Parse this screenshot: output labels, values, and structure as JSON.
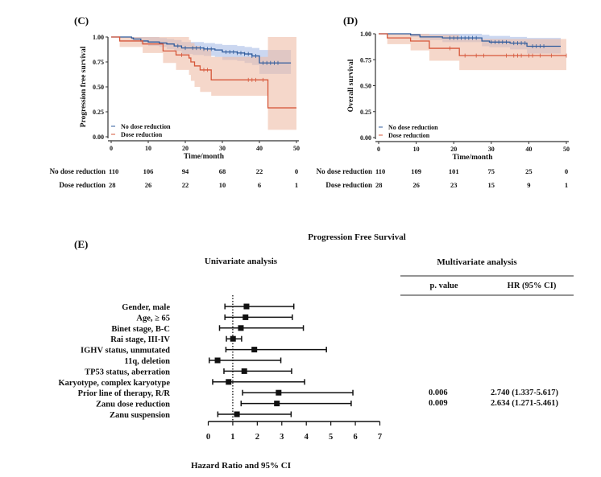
{
  "colors": {
    "no_reduction": "#2f5b9c",
    "reduction": "#d6573a",
    "no_reduction_band": "#a9bde6",
    "reduction_band": "#efbda6"
  },
  "chart_data": [
    {
      "panel": "(C)",
      "type": "line",
      "step": true,
      "xlabel": "Time/month",
      "ylabel": "Progression  free survival",
      "xlim": [
        0,
        50
      ],
      "ylim": [
        0,
        1
      ],
      "xticks": [
        "0",
        "10",
        "20",
        "30",
        "40",
        "50"
      ],
      "yticks": [
        "0.00",
        "0.25",
        "0.50",
        "0.75",
        "1.00"
      ],
      "legend": {
        "placement": "bottom-left",
        "entries": [
          "No dose reduction",
          "Dose reduction"
        ]
      },
      "series": [
        {
          "name": "No dose reduction",
          "color_key": "no_reduction",
          "x": [
            0,
            5.5,
            6,
            8,
            10,
            13,
            15,
            17,
            19,
            22,
            25,
            28,
            30,
            34,
            36,
            38,
            40,
            48.5
          ],
          "y": [
            1,
            0.99,
            0.98,
            0.96,
            0.95,
            0.94,
            0.93,
            0.91,
            0.89,
            0.89,
            0.88,
            0.87,
            0.85,
            0.84,
            0.83,
            0.81,
            0.74,
            0.74
          ],
          "ci_upper": [
            1,
            1,
            1,
            1,
            1,
            0.99,
            0.98,
            0.97,
            0.95,
            0.95,
            0.94,
            0.93,
            0.92,
            0.91,
            0.9,
            0.89,
            0.87,
            0.87
          ],
          "ci_lower": [
            1,
            0.97,
            0.96,
            0.93,
            0.91,
            0.9,
            0.88,
            0.86,
            0.83,
            0.82,
            0.81,
            0.8,
            0.77,
            0.76,
            0.74,
            0.72,
            0.63,
            0.63
          ],
          "censor": [
            18,
            20,
            22,
            23,
            24,
            25,
            26,
            27,
            31,
            32,
            33,
            34,
            35,
            36,
            37,
            38,
            39,
            41,
            42,
            43,
            44,
            45
          ]
        },
        {
          "name": "Dose reduction",
          "color_key": "reduction",
          "x": [
            0,
            2.3,
            8.5,
            14,
            17.5,
            21,
            21.5,
            22.5,
            24,
            27,
            42.3,
            50
          ],
          "y": [
            1,
            0.96,
            0.93,
            0.86,
            0.82,
            0.79,
            0.75,
            0.71,
            0.67,
            0.57,
            0.29,
            0.29
          ],
          "ci_upper": [
            1,
            1,
            1,
            1,
            1,
            0.97,
            0.94,
            0.91,
            0.88,
            0.8,
            1,
            1
          ],
          "ci_lower": [
            1,
            0.9,
            0.84,
            0.74,
            0.67,
            0.62,
            0.56,
            0.5,
            0.45,
            0.41,
            0.07,
            0.07
          ],
          "censor": [
            19,
            25,
            26,
            37,
            38,
            39,
            41
          ]
        }
      ],
      "risk_table": {
        "times": [
          0,
          10,
          20,
          30,
          40,
          50
        ],
        "rows": [
          {
            "label": "No dose reduction",
            "color_key": "no_reduction",
            "values": [
              "110",
              "106",
              "94",
              "68",
              "22",
              "0"
            ]
          },
          {
            "label": "Dose reduction",
            "color_key": "reduction",
            "values": [
              "28",
              "26",
              "22",
              "10",
              "6",
              "1"
            ]
          }
        ]
      }
    },
    {
      "panel": "(D)",
      "type": "line",
      "step": true,
      "xlabel": "Time/month",
      "ylabel": "Overall survival",
      "xlim": [
        0,
        50
      ],
      "ylim": [
        0,
        1
      ],
      "xticks": [
        "0",
        "10",
        "20",
        "30",
        "40",
        "50"
      ],
      "yticks": [
        "0.00",
        "0.25",
        "0.50",
        "0.75",
        "1.00"
      ],
      "legend": {
        "placement": "bottom-left",
        "entries": [
          "No dose reduction",
          "Dose reduction"
        ]
      },
      "series": [
        {
          "name": "No dose reduction",
          "color_key": "no_reduction",
          "x": [
            0,
            8.5,
            11,
            17,
            27.5,
            29.5,
            35,
            39.5,
            48.5
          ],
          "y": [
            1,
            0.99,
            0.97,
            0.96,
            0.93,
            0.92,
            0.91,
            0.88,
            0.88
          ],
          "ci_upper": [
            1,
            1,
            1,
            1,
            0.99,
            0.98,
            0.97,
            0.96,
            0.96
          ],
          "ci_lower": [
            1,
            0.97,
            0.94,
            0.92,
            0.88,
            0.87,
            0.85,
            0.81,
            0.81
          ],
          "censor": [
            19,
            20,
            21,
            22,
            23,
            24,
            25,
            26,
            30,
            31,
            32,
            33,
            34,
            36,
            37,
            38,
            39,
            41,
            42,
            43,
            44
          ]
        },
        {
          "name": "Dose reduction",
          "color_key": "reduction",
          "x": [
            0,
            2.3,
            8.5,
            13.5,
            21.5,
            50
          ],
          "y": [
            1,
            0.96,
            0.93,
            0.86,
            0.79,
            0.79
          ],
          "ci_upper": [
            1,
            1,
            1,
            0.99,
            0.95,
            0.95
          ],
          "ci_lower": [
            1,
            0.9,
            0.84,
            0.74,
            0.65,
            0.65
          ],
          "censor": [
            19,
            23,
            26,
            28,
            34,
            36,
            37,
            38,
            40,
            41,
            43,
            46,
            50
          ]
        }
      ],
      "risk_table": {
        "times": [
          0,
          10,
          20,
          30,
          40,
          50
        ],
        "rows": [
          {
            "label": "No dose reduction",
            "color_key": "no_reduction",
            "values": [
              "110",
              "109",
              "101",
              "75",
              "25",
              "0"
            ]
          },
          {
            "label": "Dose reduction",
            "color_key": "reduction",
            "values": [
              "28",
              "26",
              "23",
              "15",
              "9",
              "1"
            ]
          }
        ]
      }
    },
    {
      "panel": "(E)",
      "type": "forest",
      "title": "Progression Free Survival",
      "subtitle": "Univariate analysis",
      "xlabel": "Hazard Ratio and 95% CI",
      "xlim": [
        0,
        7
      ],
      "xticks": [
        "0",
        "1",
        "2",
        "3",
        "4",
        "5",
        "6",
        "7"
      ],
      "reference_line": 1,
      "rows": [
        {
          "label": "Gender, male",
          "hr": 1.56,
          "lower": 0.68,
          "upper": 3.49
        },
        {
          "label": "Age, ≥ 65",
          "hr": 1.52,
          "lower": 0.68,
          "upper": 3.43
        },
        {
          "label": "Binet stage, B-C",
          "hr": 1.33,
          "lower": 0.46,
          "upper": 3.88
        },
        {
          "label": "Rai stage, III-IV",
          "hr": 1.01,
          "lower": 0.74,
          "upper": 1.36
        },
        {
          "label": "IGHV status, unmutated",
          "hr": 1.88,
          "lower": 0.72,
          "upper": 4.82
        },
        {
          "label": "11q, deletion",
          "hr": 0.38,
          "lower": 0.04,
          "upper": 2.96
        },
        {
          "label": "TP53 status, aberration",
          "hr": 1.47,
          "lower": 0.64,
          "upper": 3.4
        },
        {
          "label": "Karyotype, complex karyotype",
          "hr": 0.83,
          "lower": 0.18,
          "upper": 3.93
        },
        {
          "label": "Prior line of therapy, R/R",
          "hr": 2.87,
          "lower": 1.4,
          "upper": 5.9
        },
        {
          "label": "Zanu dose reduction",
          "hr": 2.8,
          "lower": 1.34,
          "upper": 5.83
        },
        {
          "label": "Zanu suspension",
          "hr": 1.17,
          "lower": 0.39,
          "upper": 3.38
        }
      ],
      "multivariate": {
        "title": "Multivariate analysis",
        "headers": [
          "p. value",
          "HR (95% CI)"
        ],
        "rows": [
          {
            "p": "0.006",
            "hr": "2.740 (1.337-5.617)"
          },
          {
            "p": "0.009",
            "hr": "2.634 (1.271-5.461)"
          }
        ]
      }
    }
  ]
}
